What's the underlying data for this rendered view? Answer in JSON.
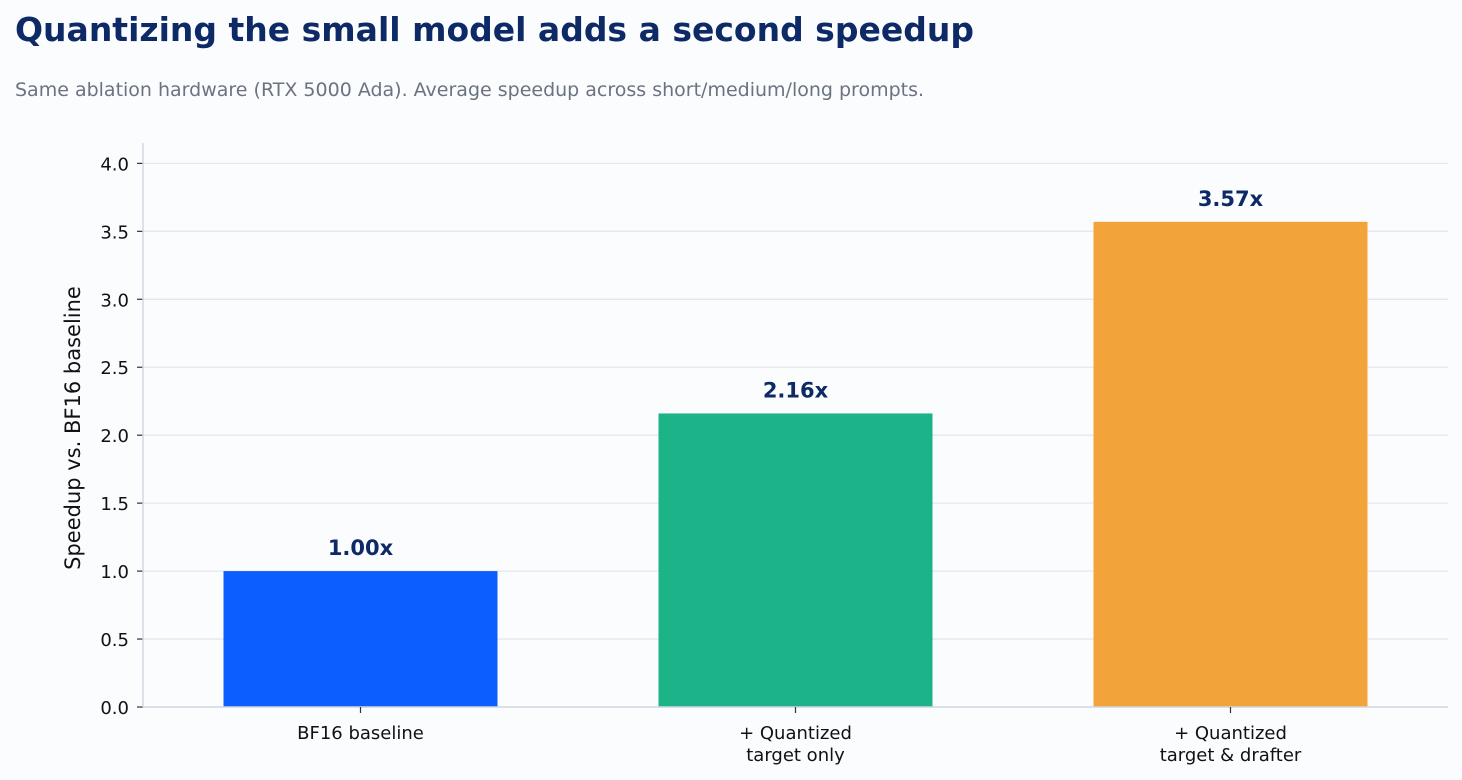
{
  "title": "Quantizing the small model adds a second speedup",
  "subtitle": "Same ablation hardware (RTX 5000 Ada). Average speedup across short/medium/long prompts.",
  "chart_data": {
    "type": "bar",
    "categories": [
      [
        "BF16 baseline"
      ],
      [
        "+ Quantized",
        "target only"
      ],
      [
        "+ Quantized",
        "target & drafter"
      ]
    ],
    "values": [
      1.0,
      2.16,
      3.57
    ],
    "value_labels": [
      "1.00x",
      "2.16x",
      "3.57x"
    ],
    "colors": [
      "#0d5efe",
      "#1db389",
      "#f2a33a"
    ],
    "ylabel": "Speedup vs. BF16 baseline",
    "ylim": [
      0,
      4.15
    ],
    "yticks": [
      0.0,
      0.5,
      1.0,
      1.5,
      2.0,
      2.5,
      3.0,
      3.5,
      4.0
    ],
    "ytick_labels": [
      "0.0",
      "0.5",
      "1.0",
      "1.5",
      "2.0",
      "2.5",
      "3.0",
      "3.5",
      "4.0"
    ],
    "grid": "horizontal",
    "legend": "none"
  }
}
